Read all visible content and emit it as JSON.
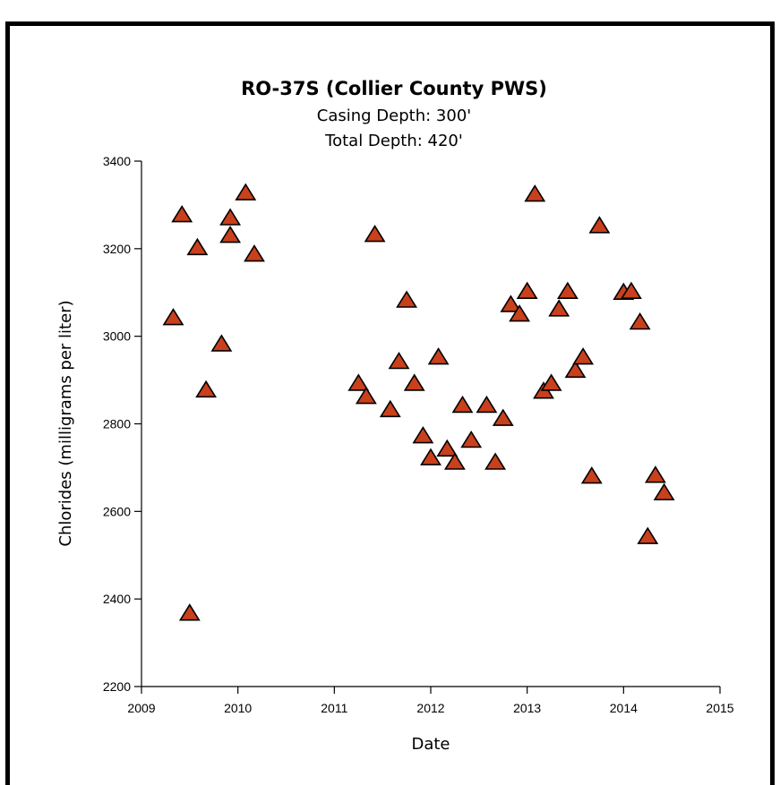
{
  "chart_data": {
    "type": "scatter",
    "title": "RO-37S (Collier County PWS)",
    "subtitle_lines": [
      "Casing Depth:  300'",
      "Total Depth:  420'"
    ],
    "xlabel": "Date",
    "ylabel": "Chlorides (milligrams per liter)",
    "xlim": [
      2009,
      2015
    ],
    "ylim": [
      2200,
      3400
    ],
    "x_ticks": [
      "2009",
      "2010",
      "2011",
      "2012",
      "2013",
      "2014",
      "2015"
    ],
    "y_ticks": [
      "2200",
      "2400",
      "2600",
      "2800",
      "3000",
      "3200",
      "3400"
    ],
    "grid": false,
    "marker": "triangle",
    "colors": {
      "marker_fill": "#c8401c",
      "marker_stroke": "#000000"
    },
    "points": [
      [
        2009.33,
        3040
      ],
      [
        2009.42,
        3275
      ],
      [
        2009.5,
        2365
      ],
      [
        2009.58,
        3200
      ],
      [
        2009.67,
        2875
      ],
      [
        2009.83,
        2980
      ],
      [
        2009.92,
        3228
      ],
      [
        2009.92,
        3268
      ],
      [
        2010.08,
        3325
      ],
      [
        2010.17,
        3185
      ],
      [
        2011.25,
        2890
      ],
      [
        2011.33,
        2860
      ],
      [
        2011.42,
        3230
      ],
      [
        2011.58,
        2830
      ],
      [
        2011.67,
        2940
      ],
      [
        2011.75,
        3080
      ],
      [
        2011.83,
        2890
      ],
      [
        2011.92,
        2770
      ],
      [
        2012.0,
        2720
      ],
      [
        2012.08,
        2950
      ],
      [
        2012.17,
        2740
      ],
      [
        2012.25,
        2710
      ],
      [
        2012.33,
        2840
      ],
      [
        2012.42,
        2760
      ],
      [
        2012.58,
        2840
      ],
      [
        2012.67,
        2710
      ],
      [
        2012.75,
        2810
      ],
      [
        2012.83,
        3070
      ],
      [
        2012.92,
        3048
      ],
      [
        2013.0,
        3100
      ],
      [
        2013.08,
        3322
      ],
      [
        2013.17,
        2872
      ],
      [
        2013.25,
        2890
      ],
      [
        2013.33,
        3060
      ],
      [
        2013.42,
        3100
      ],
      [
        2013.5,
        2920
      ],
      [
        2013.58,
        2950
      ],
      [
        2013.67,
        2678
      ],
      [
        2013.75,
        3250
      ],
      [
        2014.0,
        3098
      ],
      [
        2014.08,
        3100
      ],
      [
        2014.17,
        3030
      ],
      [
        2014.25,
        2540
      ],
      [
        2014.33,
        2680
      ],
      [
        2014.42,
        2640
      ]
    ]
  }
}
